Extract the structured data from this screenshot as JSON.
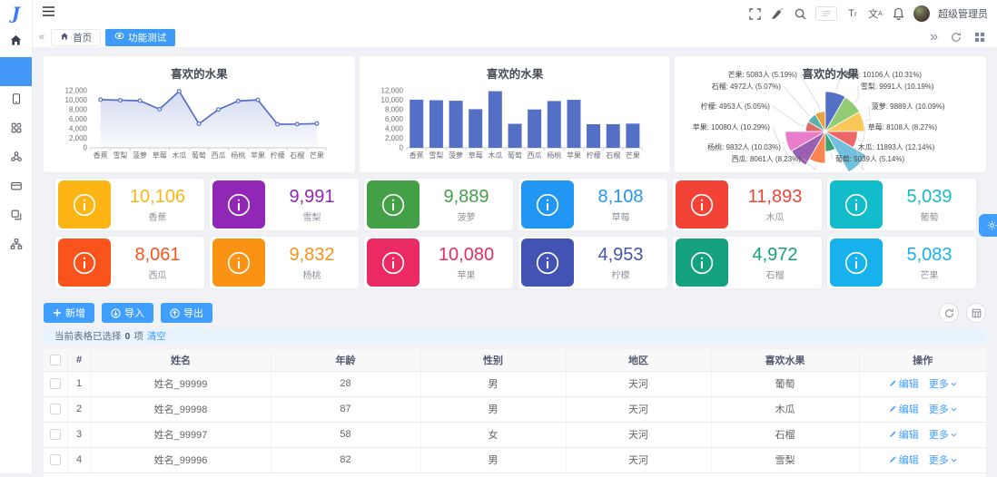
{
  "app": {
    "logo_letter": "J",
    "admin_label": "超级管理员",
    "breadcrumb_home": "首页",
    "active_tab": "功能测试",
    "accent_color": "#409eff"
  },
  "chart_data": [
    {
      "type": "line",
      "title": "喜欢的水果",
      "categories": [
        "香蕉",
        "雪梨",
        "菠萝",
        "草莓",
        "木瓜",
        "葡萄",
        "西瓜",
        "杨桃",
        "苹果",
        "柠檬",
        "石榴",
        "芒果"
      ],
      "values": [
        10106,
        9991,
        9889,
        8108,
        11893,
        5039,
        8061,
        9832,
        10080,
        4953,
        4972,
        5083
      ],
      "ylim": [
        0,
        12000
      ],
      "ytick_step": 2000,
      "line_color": "#5470c6",
      "area": true
    },
    {
      "type": "bar",
      "title": "喜欢的水果",
      "categories": [
        "香蕉",
        "雪梨",
        "菠萝",
        "草莓",
        "木瓜",
        "葡萄",
        "西瓜",
        "杨桃",
        "苹果",
        "柠檬",
        "石榴",
        "芒果"
      ],
      "values": [
        10106,
        9991,
        9889,
        8108,
        11893,
        5039,
        8061,
        9832,
        10080,
        4953,
        4972,
        5083
      ],
      "ylim": [
        0,
        12000
      ],
      "ytick_step": 2000,
      "bar_color": "#5470c6"
    },
    {
      "type": "pie",
      "subtype": "rose",
      "title": "喜欢的水果",
      "unit": "人",
      "slices": [
        {
          "name": "香蕉",
          "value": 10106,
          "pct": "10.31%",
          "color": "#5470c6"
        },
        {
          "name": "雪梨",
          "value": 9991,
          "pct": "10.19%",
          "color": "#91cc75"
        },
        {
          "name": "菠萝",
          "value": 9889,
          "pct": "10.09%",
          "color": "#fac858"
        },
        {
          "name": "草莓",
          "value": 8108,
          "pct": "8.27%",
          "color": "#ee6666"
        },
        {
          "name": "木瓜",
          "value": 11893,
          "pct": "12.14%",
          "color": "#73c0de"
        },
        {
          "name": "葡萄",
          "value": 5039,
          "pct": "5.14%",
          "color": "#3ba272"
        },
        {
          "name": "西瓜",
          "value": 8061,
          "pct": "8.23%",
          "color": "#fc8452"
        },
        {
          "name": "杨桃",
          "value": 9832,
          "pct": "10.03%",
          "color": "#9a60b4"
        },
        {
          "name": "苹果",
          "value": 10080,
          "pct": "10.29%",
          "color": "#ea7ccc"
        },
        {
          "name": "柠檬",
          "value": 4953,
          "pct": "5.05%",
          "color": "#dd6b66"
        },
        {
          "name": "石榴",
          "value": 4972,
          "pct": "5.07%",
          "color": "#5ab1ab"
        },
        {
          "name": "芒果",
          "value": 5083,
          "pct": "5.19%",
          "color": "#e6a23c"
        }
      ]
    }
  ],
  "stats": [
    {
      "value": "10,106",
      "label": "香蕉",
      "color": "#fdb515"
    },
    {
      "value": "9,991",
      "label": "雪梨",
      "color": "#9128b5"
    },
    {
      "value": "9,889",
      "label": "菠萝",
      "color": "#43a047"
    },
    {
      "value": "8,108",
      "label": "草莓",
      "color": "#2196f3"
    },
    {
      "value": "11,893",
      "label": "木瓜",
      "color": "#f34336"
    },
    {
      "value": "5,039",
      "label": "葡萄",
      "color": "#13bcca"
    },
    {
      "value": "8,061",
      "label": "西瓜",
      "color": "#fa541c"
    },
    {
      "value": "9,832",
      "label": "杨桃",
      "color": "#fa9214"
    },
    {
      "value": "10,080",
      "label": "苹果",
      "color": "#eb2a63"
    },
    {
      "value": "4,953",
      "label": "柠檬",
      "color": "#4353b4"
    },
    {
      "value": "4,972",
      "label": "石榴",
      "color": "#13a17f"
    },
    {
      "value": "5,083",
      "label": "芒果",
      "color": "#17b2ee"
    }
  ],
  "toolbar": {
    "add_label": "新增",
    "import_label": "导入",
    "export_label": "导出"
  },
  "selection_bar": {
    "prefix": "当前表格已选择",
    "count": "0",
    "suffix": "项",
    "clear_label": "清空"
  },
  "table": {
    "columns": [
      "#",
      "姓名",
      "年龄",
      "性别",
      "地区",
      "喜欢水果",
      "操作"
    ],
    "edit_label": "编辑",
    "more_label": "更多",
    "rows": [
      {
        "index": "1",
        "name": "姓名_99999",
        "age": "28",
        "gender": "男",
        "region": "天河",
        "fruit": "葡萄"
      },
      {
        "index": "2",
        "name": "姓名_99998",
        "age": "87",
        "gender": "男",
        "region": "天河",
        "fruit": "木瓜"
      },
      {
        "index": "3",
        "name": "姓名_99997",
        "age": "58",
        "gender": "女",
        "region": "天河",
        "fruit": "石榴"
      },
      {
        "index": "4",
        "name": "姓名_99996",
        "age": "82",
        "gender": "男",
        "region": "天河",
        "fruit": "雪梨"
      }
    ]
  }
}
